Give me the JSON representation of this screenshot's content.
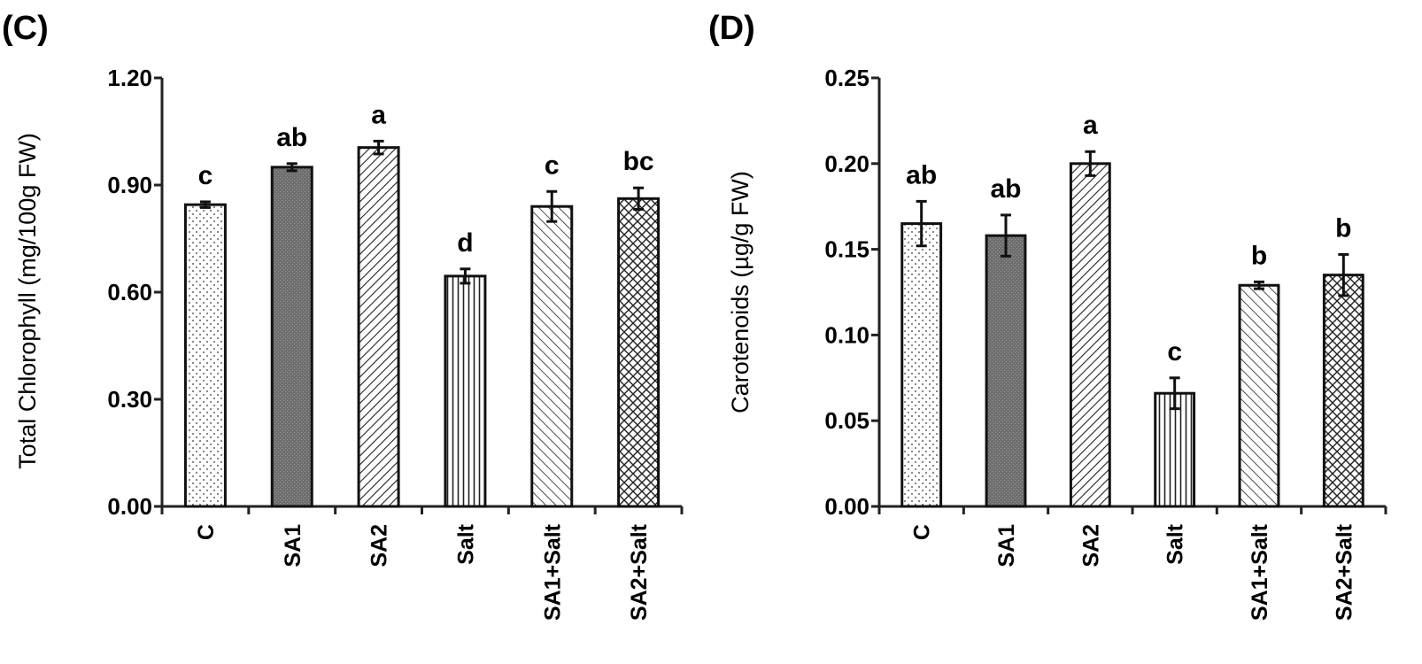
{
  "chart_data": [
    {
      "type": "bar",
      "panel_label": "(C)",
      "title": "",
      "xlabel": "",
      "ylabel": "Total Chlorophyll  (mg/100g FW)",
      "ylim": [
        0,
        1.2
      ],
      "yticks": [
        "0.00",
        "0.30",
        "0.60",
        "0.90",
        "1.20"
      ],
      "ytick_values": [
        0,
        0.3,
        0.6,
        0.9,
        1.2
      ],
      "categories": [
        "C",
        "SA1",
        "SA2",
        "Salt",
        "SA1+Salt",
        "SA2+Salt"
      ],
      "values": [
        0.845,
        0.95,
        1.005,
        0.645,
        0.84,
        0.862
      ],
      "errors": [
        0.008,
        0.01,
        0.018,
        0.02,
        0.042,
        0.03
      ],
      "significance": [
        "c",
        "ab",
        "a",
        "d",
        "c",
        "bc"
      ],
      "fills": [
        "dots",
        "dark",
        "diag-right",
        "vertical",
        "diag-left",
        "crosshatch"
      ],
      "grid": false
    },
    {
      "type": "bar",
      "panel_label": "(D)",
      "title": "",
      "xlabel": "",
      "ylabel": "Carotenoids (µg/g FW)",
      "ylim": [
        0,
        0.25
      ],
      "yticks": [
        "0.00",
        "0.05",
        "0.10",
        "0.15",
        "0.20",
        "0.25"
      ],
      "ytick_values": [
        0,
        0.05,
        0.1,
        0.15,
        0.2,
        0.25
      ],
      "categories": [
        "C",
        "SA1",
        "SA2",
        "Salt",
        "SA1+Salt",
        "SA2+Salt"
      ],
      "values": [
        0.165,
        0.158,
        0.2,
        0.066,
        0.129,
        0.135
      ],
      "errors": [
        0.013,
        0.012,
        0.007,
        0.009,
        0.002,
        0.012
      ],
      "significance": [
        "ab",
        "ab",
        "a",
        "c",
        "b",
        "b"
      ],
      "fills": [
        "dots",
        "dark",
        "diag-right",
        "vertical",
        "diag-left",
        "crosshatch"
      ],
      "grid": false
    }
  ]
}
